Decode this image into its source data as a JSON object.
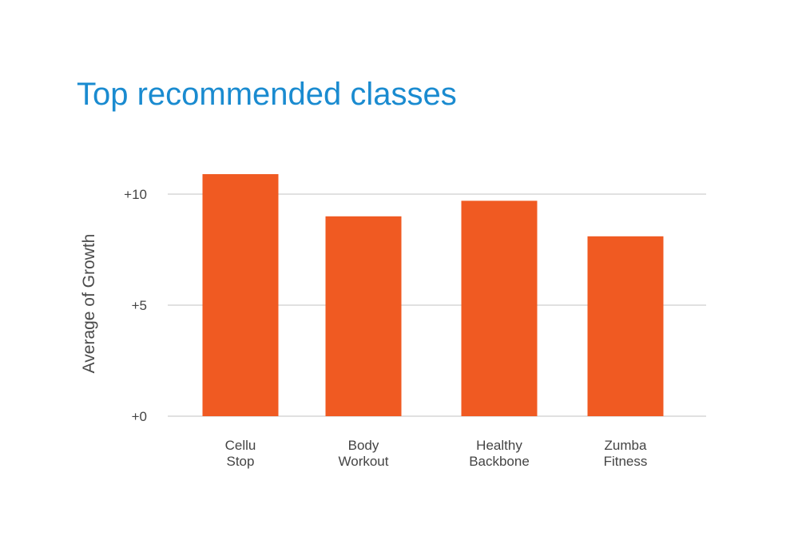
{
  "chart_data": {
    "type": "bar",
    "title": "Top recommended classes",
    "xlabel": "",
    "ylabel": "Average of Growth",
    "categories": [
      [
        "Cellu",
        "Stop"
      ],
      [
        "Body",
        "Workout"
      ],
      [
        "Healthy",
        "Backbone"
      ],
      [
        "Zumba",
        "Fitness"
      ]
    ],
    "values": [
      10.9,
      9.0,
      9.7,
      8.1
    ],
    "ylim": [
      0,
      10
    ],
    "yticks": [
      0,
      5,
      10
    ],
    "ytick_labels": [
      "+0",
      "+5",
      "+10"
    ],
    "grid": true,
    "legend": "none",
    "colors": {
      "bar": "#f05a22",
      "title": "#1a8bd0",
      "grid": "#cfcfcf",
      "text": "#444444"
    }
  }
}
